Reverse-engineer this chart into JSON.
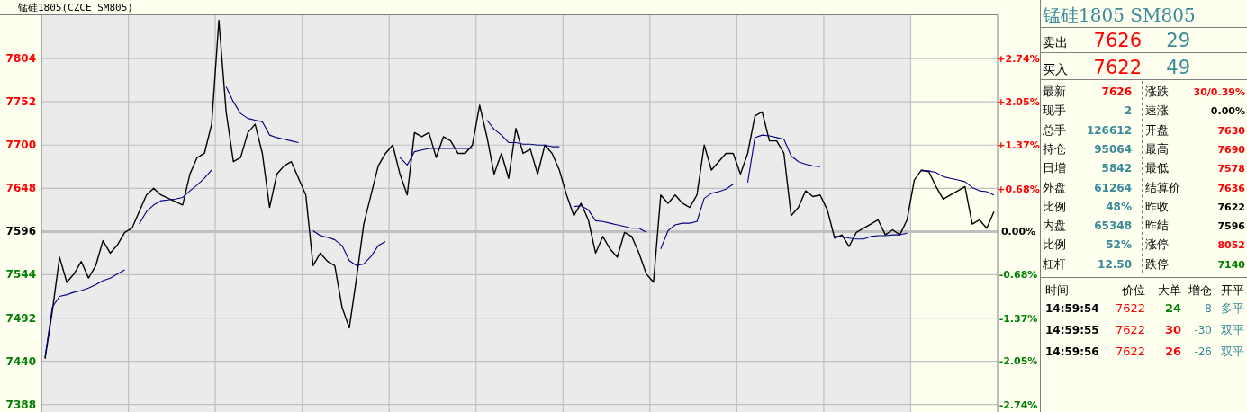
{
  "chart_data": [
    {
      "type": "line",
      "title": "锰硅1805(CZCE SM805)",
      "categories": [
        null,
        null,
        null,
        null,
        null,
        null,
        null,
        null,
        null,
        null,
        null,
        null,
        null,
        null,
        null,
        null,
        null,
        null,
        null,
        null,
        null,
        null,
        null,
        null,
        null,
        null,
        null,
        null,
        null,
        null,
        null,
        null,
        null,
        null,
        null,
        null,
        null,
        null,
        null,
        null,
        null,
        null,
        null,
        null,
        null,
        null,
        null,
        null,
        null,
        null,
        null,
        null,
        null,
        null,
        null,
        null,
        null,
        null,
        null,
        null,
        null,
        null,
        null,
        null,
        null,
        null,
        null,
        null,
        null,
        null,
        null,
        null,
        null,
        null,
        null,
        null,
        null,
        null,
        null,
        null,
        null,
        null,
        null,
        null,
        null,
        null,
        null,
        null,
        null,
        null,
        null,
        null,
        null,
        null,
        null,
        null,
        null,
        null,
        null,
        null,
        null,
        null,
        null,
        null,
        null,
        null,
        null,
        null,
        null,
        null,
        null,
        null,
        null,
        null,
        null,
        null,
        null,
        null,
        null,
        null,
        null,
        null,
        null,
        null,
        null,
        null,
        null,
        null,
        null,
        null,
        null,
        null
      ],
      "ylim": [
        7379,
        7856
      ],
      "yticks": [
        7388,
        7440,
        7492,
        7544,
        7596,
        7648,
        7700,
        7752,
        7804
      ],
      "y2lim": [
        -2.857,
        3.423
      ],
      "y2ticks": [
        {
          "value": -2.74,
          "label": "-2.74%"
        },
        {
          "value": -2.05,
          "label": "-2.05%"
        },
        {
          "value": -1.37,
          "label": "-1.37%"
        },
        {
          "value": -0.68,
          "label": "-0.68%"
        },
        {
          "value": 0,
          "label": "0.00%"
        },
        {
          "value": 0.68,
          "label": "+0.68%"
        },
        {
          "value": 1.37,
          "label": "+1.37%"
        },
        {
          "value": 2.05,
          "label": "+2.05%"
        },
        {
          "value": 2.74,
          "label": "+2.74%"
        }
      ],
      "tick_labels": "y",
      "grid": true,
      "ref_lines": [
        {
          "axis": "y",
          "value": 7596,
          "color": "#c0c0c0"
        }
      ],
      "series": [
        {
          "color": "#000000",
          "values": [
            7443,
            7500,
            7565,
            7535,
            7545,
            7560,
            7540,
            7555,
            7585,
            7570,
            7580,
            7595,
            7600,
            7620,
            7640,
            7648,
            7640,
            7636,
            7632,
            7628,
            7665,
            7685,
            7690,
            7725,
            7850,
            7740,
            7680,
            7685,
            7715,
            7725,
            7690,
            7625,
            7665,
            7675,
            7680,
            7660,
            7640,
            7555,
            7570,
            7560,
            7555,
            7505,
            7480,
            7540,
            7605,
            7640,
            7675,
            7690,
            7700,
            7665,
            7640,
            7715,
            7710,
            7715,
            7685,
            7710,
            7705,
            7690,
            7690,
            7700,
            7748,
            7710,
            7665,
            7690,
            7660,
            7720,
            7690,
            7695,
            7665,
            7700,
            7690,
            7670,
            7640,
            7615,
            7630,
            7610,
            7570,
            7590,
            7575,
            7565,
            7595,
            7590,
            7570,
            7545,
            7535,
            7640,
            7630,
            7640,
            7630,
            7625,
            7640,
            7700,
            7670,
            7680,
            7690,
            7690,
            7665,
            7690,
            7735,
            7740,
            7705,
            7705,
            7690,
            7615,
            7625,
            7645,
            7638,
            7640,
            7622,
            7588,
            7592,
            7578,
            7595,
            7600,
            7605,
            7610,
            7592,
            7598,
            7592,
            7610,
            7658,
            7670,
            7668,
            7650,
            7635,
            7640,
            7645,
            7650,
            7605,
            7610,
            7600,
            7620
          ]
        },
        {
          "color": "#000080",
          "values": [
            7445,
            7505,
            7518,
            7520,
            7523,
            7525,
            7528,
            7532,
            7537,
            7540,
            7545,
            7550,
            null,
            7605,
            7620,
            7628,
            7633,
            7634,
            7635,
            7637,
            7645,
            7652,
            7660,
            7670,
            null,
            7770,
            7752,
            7738,
            7732,
            7730,
            7728,
            7712,
            7709,
            7707,
            7705,
            7703,
            null,
            7597,
            7591,
            7589,
            7586,
            7579,
            7561,
            7555,
            7557,
            7566,
            7579,
            7584,
            null,
            7685,
            7676,
            7692,
            7694,
            7696,
            7696,
            7696,
            7696,
            7696,
            7696,
            7696,
            null,
            7730,
            7719,
            7712,
            7703,
            7703,
            7701,
            7701,
            7700,
            7700,
            7698,
            7698,
            null,
            7626,
            7627,
            7622,
            7609,
            7608,
            7606,
            7604,
            7602,
            7600,
            7600,
            7595,
            null,
            7575,
            7597,
            7604,
            7606,
            7606,
            7608,
            7636,
            7642,
            7644,
            7647,
            7653,
            null,
            7655,
            7709,
            7712,
            7711,
            7709,
            7707,
            7687,
            7680,
            7677,
            7675,
            7674,
            null,
            7590,
            7590,
            7588,
            7587,
            7587,
            7590,
            7591,
            7591,
            7592,
            7592,
            7594,
            null,
            7669,
            7669,
            7667,
            7662,
            7660,
            7658,
            7656,
            7649,
            7645,
            7644,
            7640
          ]
        }
      ]
    },
    {
      "type": "other",
      "title": "锰硅1805  SM805",
      "annotations": [
        "卖出",
        "7626",
        "29",
        "买入",
        "7622",
        "49",
        "最新",
        "7626",
        "涨跌",
        "30/0.39%",
        "现手",
        "2",
        "速涨",
        "0.00%",
        "总手",
        "126612",
        "开盘",
        "7630",
        "持仓",
        "95064",
        "最高",
        "7690",
        "日增",
        "5842",
        "最低",
        "7578",
        "外盘",
        "61264",
        "结算价",
        "7636",
        "比例",
        "48%",
        "昨收",
        "7622",
        "内盘",
        "65348",
        "昨结",
        "7596",
        "比例",
        "52%",
        "涨停",
        "8052",
        "杠杆",
        "12.50",
        "跌停",
        "7140",
        "时间",
        "价位",
        "大单",
        "增仓",
        "开平",
        "14:59:54",
        "7622",
        "24",
        "-8",
        "多平",
        "14:59:55",
        "7622",
        "30",
        "-30",
        "双平",
        "14:59:56",
        "7622",
        "26",
        "-26",
        "双平"
      ],
      "colors": [
        "#000000",
        "#ff0000",
        "#3a8a9a",
        "#000000",
        "#ff0000",
        "#3a8a9a",
        "#000000",
        "#ff0000",
        "#000000",
        "#ff0000",
        "#000000",
        "#3a8a9a",
        "#000000",
        "#000000",
        "#000000",
        "#3a8a9a",
        "#000000",
        "#ff0000",
        "#000000",
        "#3a8a9a",
        "#000000",
        "#ff0000",
        "#000000",
        "#3a8a9a",
        "#000000",
        "#ff0000",
        "#000000",
        "#3a8a9a",
        "#000000",
        "#ff0000",
        "#000000",
        "#3a8a9a",
        "#000000",
        "#000000",
        "#000000",
        "#3a8a9a",
        "#000000",
        "#000000",
        "#000000",
        "#3a8a9a",
        "#000000",
        "#ff0000",
        "#000000",
        "#3a8a9a",
        "#000000",
        "#008000",
        "#000000",
        "#000000",
        "#000000",
        "#000000",
        "#000000",
        "#000000",
        "#ff0000",
        "#008000",
        "#3a8a9a",
        "#3a8a9a",
        "#000000",
        "#ff0000",
        "#ff0000",
        "#3a8a9a",
        "#3a8a9a",
        "#000000",
        "#ff0000",
        "#ff0000",
        "#3a8a9a",
        "#3a8a9a"
      ]
    }
  ]
}
